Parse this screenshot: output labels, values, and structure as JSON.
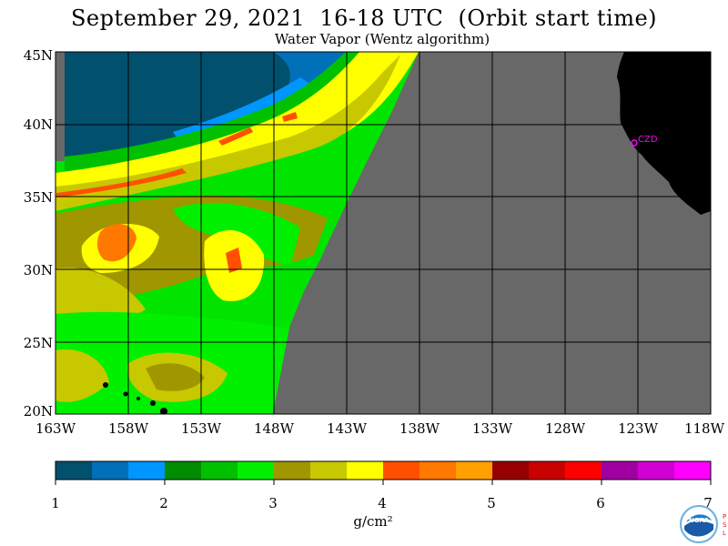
{
  "header": {
    "title": "September 29, 2021  16-18 UTC  (Orbit start time)",
    "subtitle": "Water Vapor (Wentz algorithm)"
  },
  "map": {
    "lat_labels": [
      "45N",
      "40N",
      "35N",
      "30N",
      "25N",
      "20N"
    ],
    "lon_labels": [
      "163W",
      "158W",
      "153W",
      "148W",
      "143W",
      "138W",
      "133W",
      "128W",
      "123W",
      "118W"
    ],
    "station_label": "CZD",
    "lat_range": [
      20,
      45
    ],
    "lon_range": [
      -163,
      -118
    ]
  },
  "colorbar": {
    "ticks": [
      "1",
      "2",
      "3",
      "4",
      "5",
      "6",
      "7"
    ],
    "units": "g/cm²",
    "colors": [
      "#00506e",
      "#0070b8",
      "#0096ff",
      "#008c00",
      "#00c000",
      "#00f000",
      "#a09600",
      "#c8c800",
      "#ffff00",
      "#ff5000",
      "#ff7800",
      "#ffa000",
      "#960000",
      "#c80000",
      "#ff0000",
      "#a000a0",
      "#d200d2",
      "#ff00ff"
    ]
  },
  "logo": {
    "name": "noaa-logo",
    "side_text": "PSL"
  }
}
